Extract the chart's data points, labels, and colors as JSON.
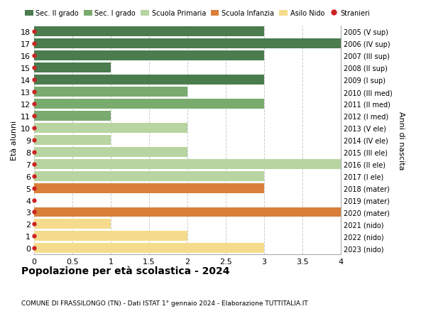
{
  "ages": [
    18,
    17,
    16,
    15,
    14,
    13,
    12,
    11,
    10,
    9,
    8,
    7,
    6,
    5,
    4,
    3,
    2,
    1,
    0
  ],
  "right_labels": [
    "2005 (V sup)",
    "2006 (IV sup)",
    "2007 (III sup)",
    "2008 (II sup)",
    "2009 (I sup)",
    "2010 (III med)",
    "2011 (II med)",
    "2012 (I med)",
    "2013 (V ele)",
    "2014 (IV ele)",
    "2015 (III ele)",
    "2016 (II ele)",
    "2017 (I ele)",
    "2018 (mater)",
    "2019 (mater)",
    "2020 (mater)",
    "2021 (nido)",
    "2022 (nido)",
    "2023 (nido)"
  ],
  "bar_values": [
    3,
    4,
    3,
    1,
    3,
    2,
    3,
    1,
    2,
    1,
    2,
    4,
    3,
    3,
    0,
    4,
    1,
    2,
    3
  ],
  "bar_colors": [
    "#4a7c4e",
    "#4a7c4e",
    "#4a7c4e",
    "#4a7c4e",
    "#4a7c4e",
    "#7aab6e",
    "#7aab6e",
    "#7aab6e",
    "#b8d4a0",
    "#b8d4a0",
    "#b8d4a0",
    "#b8d4a0",
    "#b8d4a0",
    "#d97f3a",
    "#d97f3a",
    "#d97f3a",
    "#f5dc8c",
    "#f5dc8c",
    "#f5dc8c"
  ],
  "stranieri_dots": [
    18,
    17,
    16,
    15,
    14,
    13,
    12,
    11,
    10,
    9,
    8,
    7,
    6,
    5,
    4,
    3,
    2,
    1,
    0
  ],
  "legend_labels": [
    "Sec. II grado",
    "Sec. I grado",
    "Scuola Primaria",
    "Scuola Infanzia",
    "Asilo Nido",
    "Stranieri"
  ],
  "legend_colors": [
    "#4a7c4e",
    "#7aab6e",
    "#b8d4a0",
    "#d97f3a",
    "#f5dc8c",
    "#cc2222"
  ],
  "legend_markers": [
    "s",
    "s",
    "s",
    "s",
    "s",
    "o"
  ],
  "title": "Popolazione per età scolastica - 2024",
  "subtitle": "COMUNE DI FRASSILONGO (TN) - Dati ISTAT 1° gennaio 2024 - Elaborazione TUTTITALIA.IT",
  "ylabel_left": "Età alunni",
  "ylabel_right": "Anni di nascita",
  "xlim": [
    0,
    4.0
  ],
  "xticks": [
    0,
    0.5,
    1.0,
    1.5,
    2.0,
    2.5,
    3.0,
    3.5,
    4.0
  ],
  "ylim": [
    -0.5,
    18.5
  ],
  "bg_color": "#ffffff",
  "grid_color": "#cccccc",
  "bar_height": 0.82
}
